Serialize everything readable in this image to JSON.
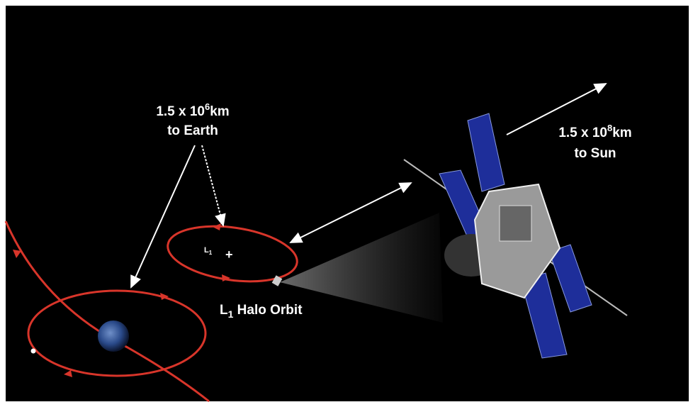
{
  "earth_label": {
    "base": "1.5 x 10",
    "exponent": "6",
    "unit": "km",
    "line2": "to Earth"
  },
  "sun_label": {
    "base": "1.5 x 10",
    "exponent": "8",
    "unit": "km",
    "line2": "to Sun"
  },
  "l1_point": {
    "letter": "L",
    "subscript": "1",
    "marker": "+"
  },
  "halo_label": {
    "letter": "L",
    "subscript": "1",
    "text": " Halo Orbit"
  }
}
